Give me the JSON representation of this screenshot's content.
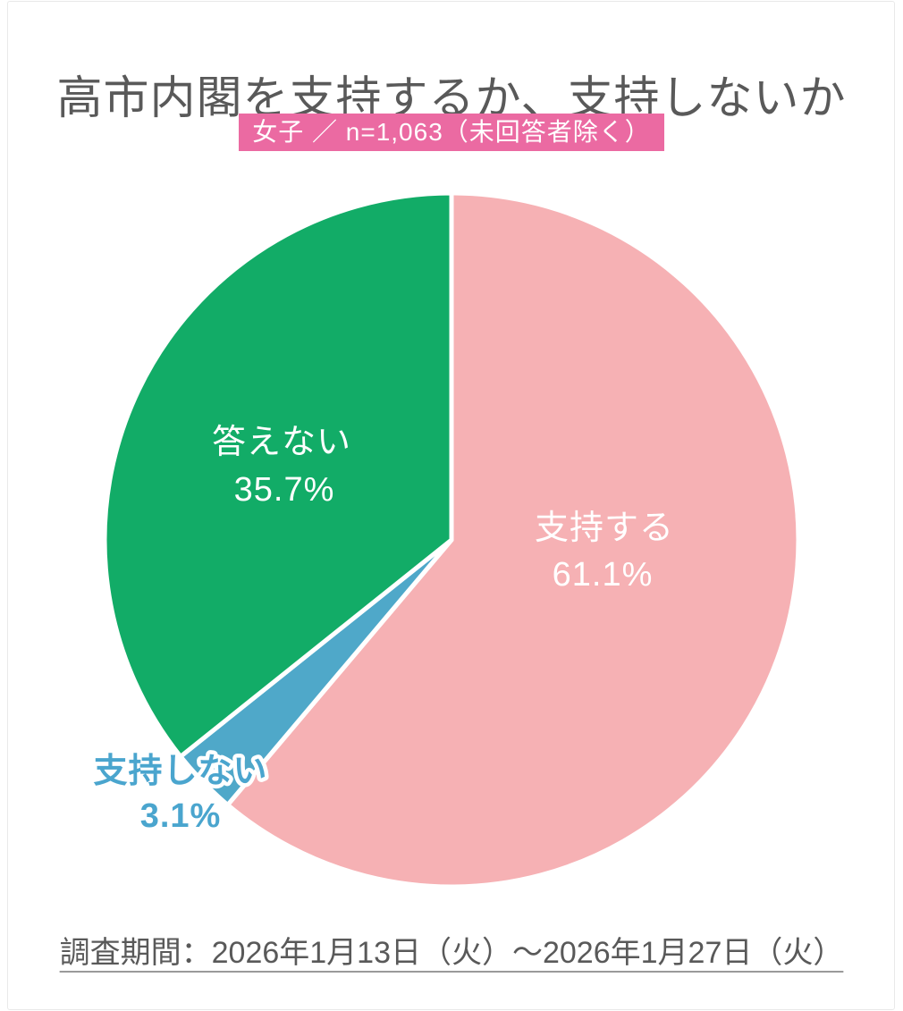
{
  "page": {
    "title": "高市内閣を支持するか、支持しないか",
    "badge": "女子 ／ n=1,063（未回答者除く）",
    "footer": "調査期間：2026年1月13日（火）～2026年1月27日（火）",
    "colors": {
      "title_text": "#595959",
      "badge_bg": "#EB6AA2",
      "badge_text": "#FFFFFF",
      "footer_text": "#595959"
    }
  },
  "chart_data": {
    "type": "pie",
    "title": "高市内閣を支持するか、支持しないか",
    "subtitle": "女子 ／ n=1,063（未回答者除く）",
    "sample_size": "n=1,063",
    "start_angle_deg": 0,
    "direction": "clockwise",
    "slice_separator_color": "#FFFFFF",
    "slices": [
      {
        "label": "支持する",
        "value": 61.1,
        "pct_text": "61.1%",
        "color": "#F6B1B4",
        "label_color": "#FFFFFF",
        "label_outside": false
      },
      {
        "label": "支持しない",
        "value": 3.1,
        "pct_text": "3.1%",
        "color": "#4FA8C9",
        "label_color": "#4AA5CE",
        "label_outline": "#FFFFFF",
        "label_outside": true
      },
      {
        "label": "答えない",
        "value": 35.7,
        "pct_text": "35.7%",
        "color": "#12AC67",
        "label_color": "#FFFFFF",
        "label_outside": false
      }
    ],
    "survey_period": "調査期間：2026年1月13日（火）～2026年1月27日（火）"
  }
}
